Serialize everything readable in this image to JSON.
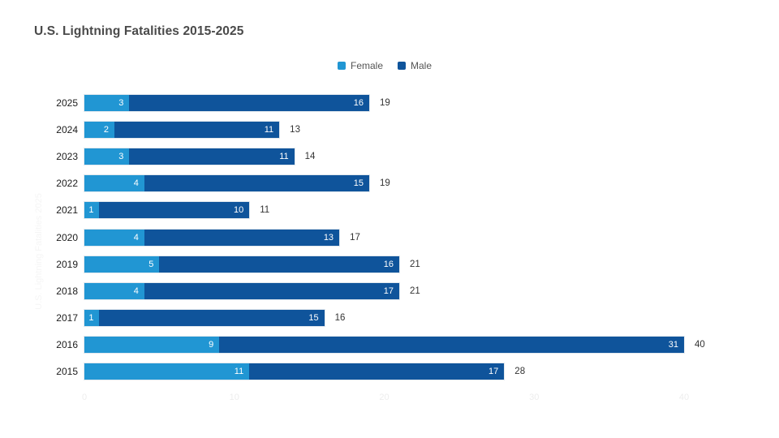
{
  "page": {
    "background": "#ffffff"
  },
  "chart_data": {
    "type": "bar",
    "variant": "stacked-horizontal",
    "title": "U.S. Lightning Fatalities 2015-2025",
    "axis_title": "U.S. Lightning Fatalities 2025",
    "categories": [
      "2025",
      "2024",
      "2023",
      "2022",
      "2021",
      "2020",
      "2019",
      "2018",
      "2017",
      "2016",
      "2015"
    ],
    "series": [
      {
        "name": "Female",
        "color": "#2196d3",
        "values": [
          3,
          2,
          3,
          4,
          1,
          4,
          5,
          4,
          1,
          9,
          11
        ]
      },
      {
        "name": "Male",
        "color": "#0f549b",
        "values": [
          16,
          11,
          11,
          15,
          10,
          13,
          16,
          17,
          15,
          31,
          17
        ]
      }
    ],
    "totals": [
      19,
      13,
      14,
      19,
      11,
      17,
      21,
      21,
      16,
      40,
      28
    ],
    "x_ticks": [
      "0",
      "10",
      "20",
      "30",
      "40"
    ],
    "xlim": [
      0,
      40
    ],
    "legend_position": "top",
    "grid": false,
    "value_label_color": "#ffffff",
    "total_label_color": "#333333",
    "tick_label_color": "#ededed"
  }
}
